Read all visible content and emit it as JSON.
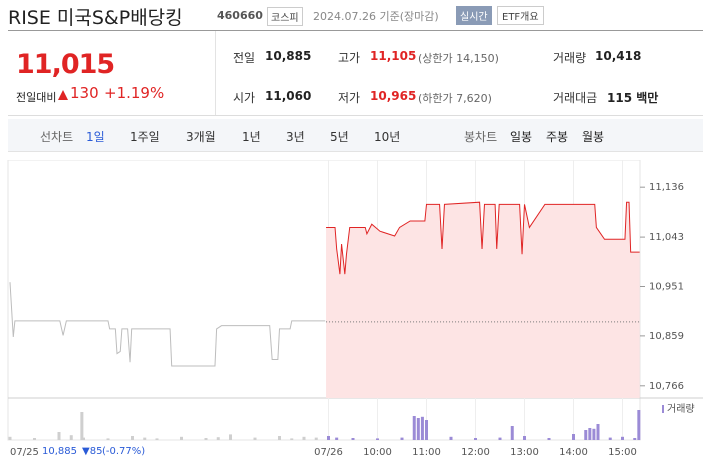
{
  "header": {
    "title": "RISE 미국S&P배당킹",
    "code": "460660",
    "market": "코스피",
    "date": "2024.07.26 기준(장마감)",
    "badge": "실시간",
    "overview": "ETF개요"
  },
  "price": {
    "current": "11,015",
    "change_label": "전일대비",
    "change": "130",
    "change_rate": "+1.19%"
  },
  "stats": {
    "rows": [
      [
        {
          "label": "전일",
          "value": "10,885"
        },
        {
          "label": "고가",
          "value": "11,105",
          "note": "(상한가 14,150)"
        },
        {
          "label": "거래량",
          "value": "10,418"
        }
      ],
      [
        {
          "label": "시가",
          "value": "11,060"
        },
        {
          "label": "저가",
          "value": "10,965",
          "note": "(하한가 7,620)"
        },
        {
          "label": "거래대금",
          "value": "115 백만"
        }
      ]
    ]
  },
  "tabs": {
    "line_label": "선차트",
    "line": [
      "1일",
      "1주일",
      "3개월",
      "1년",
      "3년",
      "5년",
      "10년"
    ],
    "candle_label": "봉차트",
    "candle": [
      "일봉",
      "주봉",
      "월봉"
    ]
  },
  "footer": {
    "prev_close": "10,885",
    "change": "85",
    "change_rate": "(-0.77%)"
  },
  "chart_data": {
    "type": "line",
    "prev_close": 10885,
    "xlim": [
      0,
      780
    ],
    "ylim": [
      10747,
      11168
    ],
    "xticks": [
      {
        "value": 0,
        "label": "07/25"
      },
      {
        "value": 390,
        "label": "07/26"
      },
      {
        "value": 450,
        "label": "10:00"
      },
      {
        "value": 510,
        "label": "11:00"
      },
      {
        "value": 570,
        "label": "12:00"
      },
      {
        "value": 630,
        "label": "13:00"
      },
      {
        "value": 690,
        "label": "14:00"
      },
      {
        "value": 750,
        "label": "15:00"
      }
    ],
    "yticks": [
      {
        "value": 10766,
        "label": "10,766"
      },
      {
        "value": 10859,
        "label": "10,859"
      },
      {
        "value": 10951,
        "label": "10,951"
      },
      {
        "value": 11043,
        "label": "11,043"
      },
      {
        "value": 11136,
        "label": "11,136"
      }
    ],
    "series": [
      {
        "color": "#bdbdbd",
        "x": [
          0,
          4,
          6,
          61,
          65,
          69,
          120,
          122,
          129,
          131,
          135,
          137,
          144,
          147,
          149,
          196,
          198,
          251,
          253,
          259,
          318,
          321,
          328,
          330,
          343,
          345,
          386
        ],
        "values": [
          10959,
          10857,
          10887,
          10887,
          10860,
          10887,
          10887,
          10872,
          10872,
          10826,
          10830,
          10872,
          10872,
          10810,
          10872,
          10872,
          10803,
          10803,
          10872,
          10878,
          10878,
          10815,
          10815,
          10872,
          10872,
          10887,
          10887
        ]
      },
      {
        "color": "#e02424",
        "fill": "#fde4e4",
        "x": [
          387,
          398,
          400,
          404,
          406,
          410,
          412,
          416,
          435,
          437,
          443,
          453,
          471,
          477,
          490,
          508,
          510,
          526,
          529,
          532,
          575,
          578,
          581,
          594,
          596,
          599,
          624,
          627,
          630,
          636,
          655,
          716,
          718,
          728,
          753,
          755,
          758,
          760,
          771
        ],
        "values": [
          11061,
          11061,
          11021,
          10974,
          11030,
          10974,
          11011,
          11061,
          11061,
          11049,
          11067,
          11054,
          11045,
          11061,
          11073,
          11073,
          11104,
          11104,
          11021,
          11104,
          11108,
          11021,
          11104,
          11104,
          11021,
          11104,
          11104,
          11011,
          11104,
          11061,
          11104,
          11104,
          11061,
          11039,
          11039,
          11108,
          11108,
          11015,
          11015
        ]
      }
    ],
    "volume": {
      "label": "거래량",
      "vlim": [
        0,
        100
      ],
      "series": [
        {
          "color": "#cfcfcf",
          "x": [
            0,
            30,
            60,
            75,
            88,
            90,
            120,
            150,
            165,
            180,
            210,
            240,
            255,
            270,
            300,
            330,
            345,
            360,
            375
          ],
          "values": [
            8,
            5,
            20,
            12,
            70,
            6,
            4,
            10,
            6,
            4,
            8,
            5,
            7,
            14,
            6,
            10,
            4,
            8,
            6
          ]
        },
        {
          "color": "#9b8bd6",
          "x": [
            390,
            400,
            420,
            450,
            480,
            495,
            500,
            505,
            510,
            540,
            570,
            600,
            615,
            630,
            660,
            690,
            705,
            710,
            715,
            720,
            735,
            750,
            765,
            770
          ],
          "values": [
            10,
            6,
            5,
            4,
            6,
            60,
            55,
            58,
            50,
            8,
            5,
            6,
            35,
            10,
            5,
            15,
            25,
            30,
            28,
            40,
            6,
            8,
            5,
            75
          ]
        }
      ]
    }
  }
}
